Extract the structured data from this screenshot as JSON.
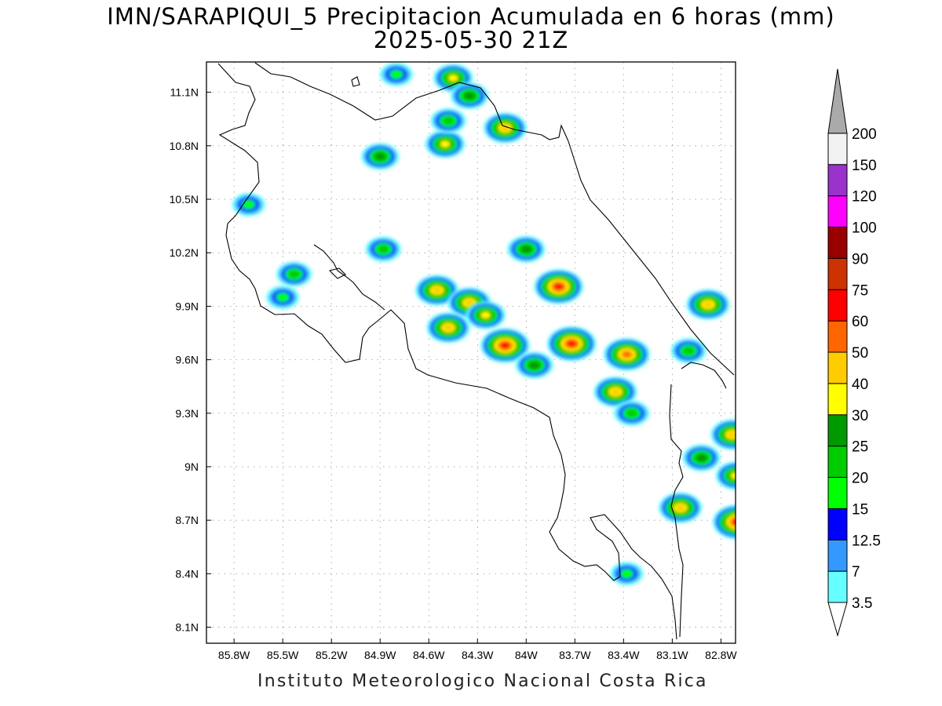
{
  "title": {
    "line1": "IMN/SARAPIQUI_5 Precipitacion Acumulada en 6 horas (mm)",
    "line2": "2025-05-30 21Z"
  },
  "footer": "Instituto Meteorologico Nacional Costa Rica",
  "map": {
    "lon_range": [
      -85.97,
      -82.71
    ],
    "lat_range": [
      8.01,
      11.27
    ],
    "lon_ticks": [
      "85.8W",
      "85.5W",
      "85.2W",
      "84.9W",
      "84.6W",
      "84.3W",
      "84W",
      "83.7W",
      "83.4W",
      "83.1W",
      "82.8W"
    ],
    "lat_ticks": [
      "11.1N",
      "10.8N",
      "10.5N",
      "10.2N",
      "9.9N",
      "9.6N",
      "9.3N",
      "9N",
      "8.7N",
      "8.4N",
      "8.1N"
    ],
    "gridlines": true
  },
  "colorbar": {
    "labels": [
      "3.5",
      "7",
      "12.5",
      "15",
      "20",
      "25",
      "30",
      "40",
      "50",
      "60",
      "75",
      "90",
      "100",
      "120",
      "150",
      "200"
    ],
    "colors": [
      "#66ffff",
      "#3399ff",
      "#0000ff",
      "#00ff00",
      "#00cc00",
      "#009900",
      "#ffff00",
      "#ffcc00",
      "#ff6600",
      "#ff0000",
      "#cc3300",
      "#990000",
      "#ff00ff",
      "#9933cc",
      "#f2f2f2",
      "#aaaaaa"
    ]
  },
  "precip_cells": [
    {
      "lon": -84.45,
      "lat": 11.18,
      "mm": 30
    },
    {
      "lon": -84.8,
      "lat": 11.2,
      "mm": 15
    },
    {
      "lon": -84.35,
      "lat": 11.08,
      "mm": 25
    },
    {
      "lon": -84.9,
      "lat": 10.74,
      "mm": 25
    },
    {
      "lon": -84.5,
      "lat": 10.81,
      "mm": 30
    },
    {
      "lon": -84.48,
      "lat": 10.94,
      "mm": 20
    },
    {
      "lon": -84.13,
      "lat": 10.9,
      "mm": 40
    },
    {
      "lon": -85.71,
      "lat": 10.47,
      "mm": 15
    },
    {
      "lon": -85.43,
      "lat": 10.08,
      "mm": 20
    },
    {
      "lon": -84.88,
      "lat": 10.22,
      "mm": 20
    },
    {
      "lon": -85.5,
      "lat": 9.95,
      "mm": 15
    },
    {
      "lon": -84.55,
      "lat": 9.99,
      "mm": 40
    },
    {
      "lon": -84.35,
      "lat": 9.92,
      "mm": 40
    },
    {
      "lon": -84.48,
      "lat": 9.78,
      "mm": 40
    },
    {
      "lon": -84.25,
      "lat": 9.85,
      "mm": 30
    },
    {
      "lon": -84.0,
      "lat": 10.22,
      "mm": 25
    },
    {
      "lon": -83.8,
      "lat": 10.01,
      "mm": 60
    },
    {
      "lon": -84.13,
      "lat": 9.68,
      "mm": 60
    },
    {
      "lon": -83.95,
      "lat": 9.57,
      "mm": 25
    },
    {
      "lon": -83.72,
      "lat": 9.69,
      "mm": 60
    },
    {
      "lon": -83.45,
      "lat": 9.42,
      "mm": 40
    },
    {
      "lon": -83.38,
      "lat": 9.63,
      "mm": 50
    },
    {
      "lon": -83.35,
      "lat": 9.3,
      "mm": 20
    },
    {
      "lon": -83.0,
      "lat": 9.65,
      "mm": 20
    },
    {
      "lon": -82.88,
      "lat": 9.91,
      "mm": 40
    },
    {
      "lon": -82.92,
      "lat": 9.05,
      "mm": 25
    },
    {
      "lon": -82.73,
      "lat": 9.18,
      "mm": 40
    },
    {
      "lon": -82.71,
      "lat": 8.95,
      "mm": 30
    },
    {
      "lon": -83.05,
      "lat": 8.77,
      "mm": 40
    },
    {
      "lon": -82.7,
      "lat": 8.69,
      "mm": 60
    },
    {
      "lon": -83.38,
      "lat": 8.4,
      "mm": 15
    }
  ]
}
